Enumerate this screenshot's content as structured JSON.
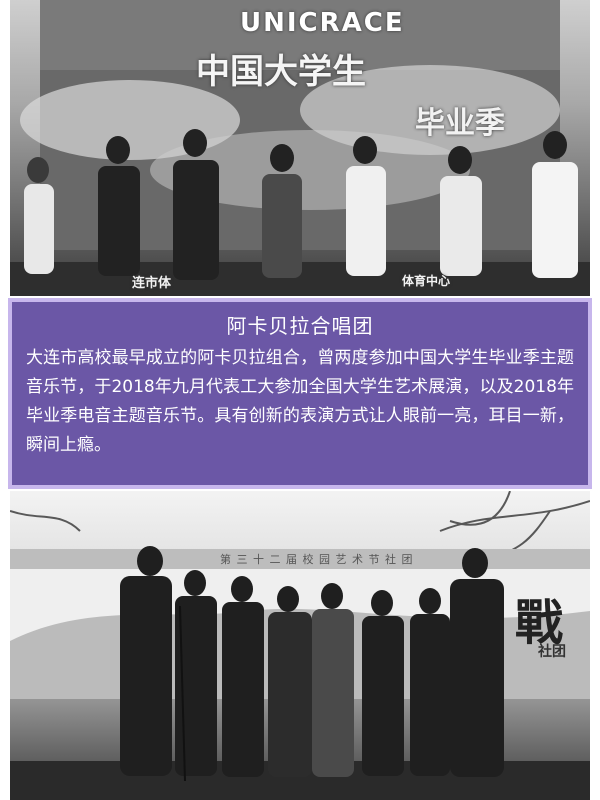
{
  "top_photo": {
    "banner_brand": "UNICRACE",
    "banner_title": "中国大学生",
    "banner_subtitle_partial": "毕业季",
    "stage_label_left": "连市体",
    "stage_label_right": "体育中心"
  },
  "caption": {
    "title": "阿卡贝拉合唱团",
    "body": "大连市高校最早成立的阿卡贝拉组合，曾两度参加中国大学生毕业季主题音乐节，于2018年九月代表工大参加全国大学生艺术展演，以及2018年毕业季电音主题音乐节。具有创新的表演方式让人眼前一亮，耳目一新，瞬间上瘾。",
    "background_color": "#6b57a6",
    "border_color": "#c7b6ec"
  },
  "bottom_photo": {
    "banner_text": "第 三 十 二 届 校 园 艺 术 节 社 团",
    "calligraphy": "戰",
    "calligraphy_sub": "社团"
  }
}
